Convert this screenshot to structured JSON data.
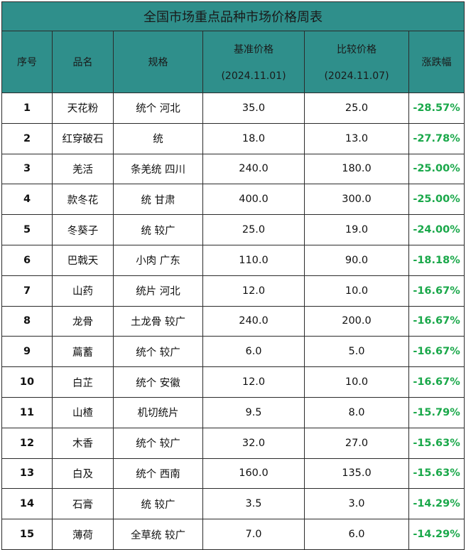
{
  "title": "全国市场重点品种市场价格周表",
  "headers": {
    "no": "序号",
    "name": "品名",
    "spec": "规格",
    "base_label": "基准价格",
    "base_date": "(2024.11.01)",
    "cmp_label": "比较价格",
    "cmp_date": "(2024.11.07)",
    "change": "涨跌幅"
  },
  "rows": [
    {
      "no": "1",
      "name": "天花粉",
      "spec": "统个  河北",
      "base": "35.0",
      "cmp": "25.0",
      "change": "-28.57%"
    },
    {
      "no": "2",
      "name": "红穿破石",
      "spec": "统",
      "base": "18.0",
      "cmp": "13.0",
      "change": "-27.78%"
    },
    {
      "no": "3",
      "name": "羌活",
      "spec": "条羌统  四川",
      "base": "240.0",
      "cmp": "180.0",
      "change": "-25.00%"
    },
    {
      "no": "4",
      "name": "款冬花",
      "spec": "统  甘肃",
      "base": "400.0",
      "cmp": "300.0",
      "change": "-25.00%"
    },
    {
      "no": "5",
      "name": "冬葵子",
      "spec": "统  较广",
      "base": "25.0",
      "cmp": "19.0",
      "change": "-24.00%"
    },
    {
      "no": "6",
      "name": "巴戟天",
      "spec": "小肉  广东",
      "base": "110.0",
      "cmp": "90.0",
      "change": "-18.18%"
    },
    {
      "no": "7",
      "name": "山药",
      "spec": "统片  河北",
      "base": "12.0",
      "cmp": "10.0",
      "change": "-16.67%"
    },
    {
      "no": "8",
      "name": "龙骨",
      "spec": "土龙骨  较广",
      "base": "240.0",
      "cmp": "200.0",
      "change": "-16.67%"
    },
    {
      "no": "9",
      "name": "萹蓄",
      "spec": "统个  较广",
      "base": "6.0",
      "cmp": "5.0",
      "change": "-16.67%"
    },
    {
      "no": "10",
      "name": "白芷",
      "spec": "统个  安徽",
      "base": "12.0",
      "cmp": "10.0",
      "change": "-16.67%"
    },
    {
      "no": "11",
      "name": "山楂",
      "spec": "机切统片",
      "base": "9.5",
      "cmp": "8.0",
      "change": "-15.79%"
    },
    {
      "no": "12",
      "name": "木香",
      "spec": "统个  较广",
      "base": "32.0",
      "cmp": "27.0",
      "change": "-15.63%"
    },
    {
      "no": "13",
      "name": "白及",
      "spec": "统个  西南",
      "base": "160.0",
      "cmp": "135.0",
      "change": "-15.63%"
    },
    {
      "no": "14",
      "name": "石膏",
      "spec": "统  较广",
      "base": "3.5",
      "cmp": "3.0",
      "change": "-14.29%"
    },
    {
      "no": "15",
      "name": "薄荷",
      "spec": "全草统  较广",
      "base": "7.0",
      "cmp": "6.0",
      "change": "-14.29%"
    }
  ],
  "colors": {
    "header_bg": "#2f8f8b",
    "change_text": "#1aa84a",
    "border": "#2b2b2b"
  }
}
